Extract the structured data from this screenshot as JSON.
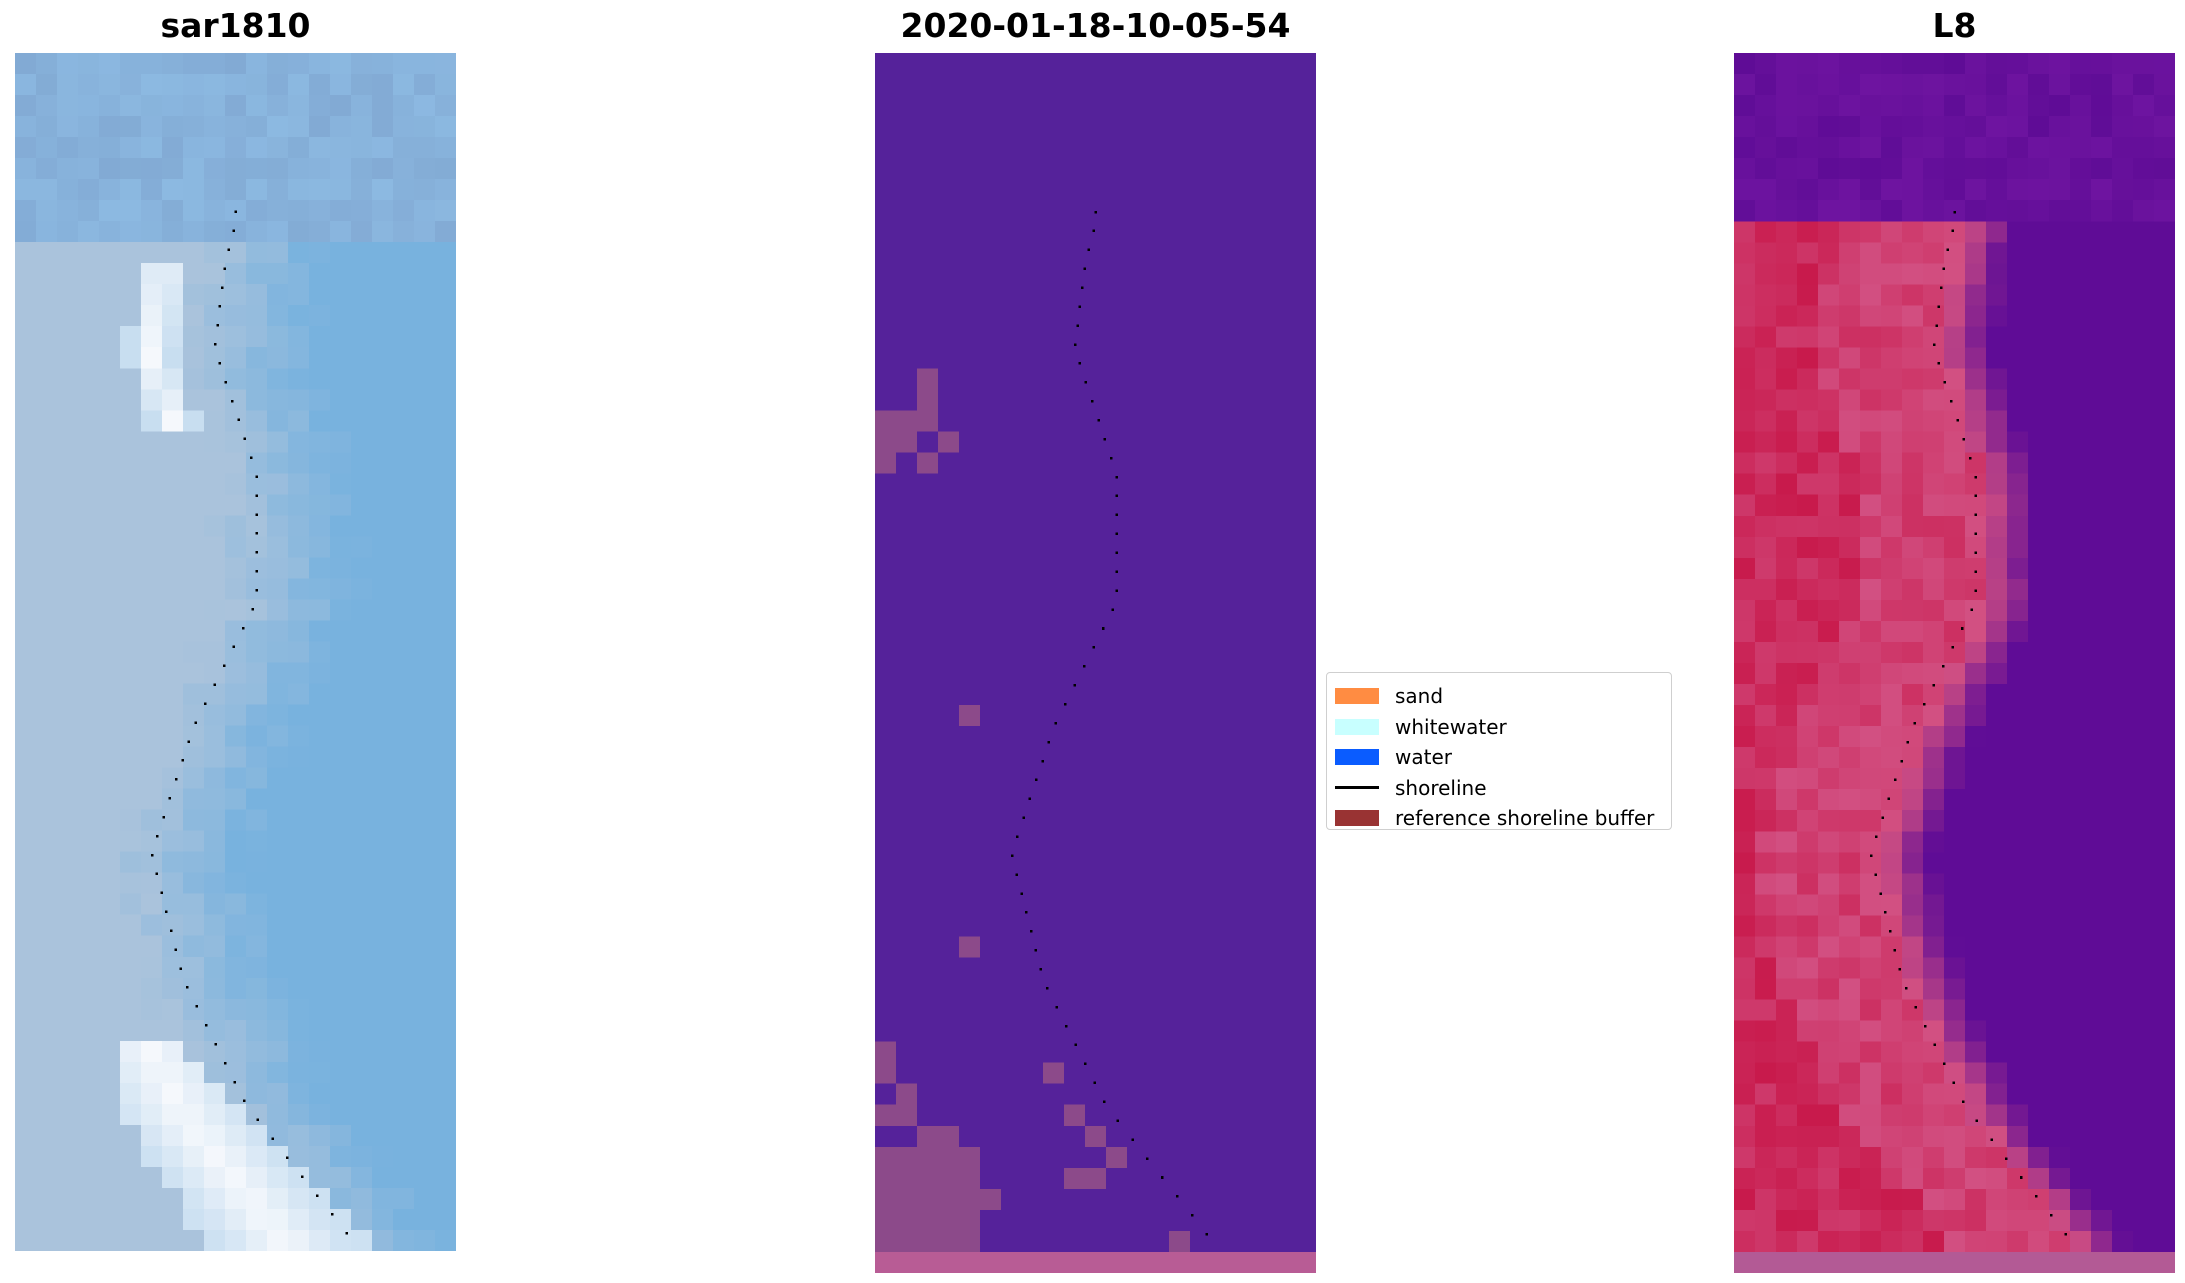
{
  "panels": [
    {
      "title": "sar1810",
      "kind": "rgb"
    },
    {
      "title": "2020-01-18-10-05-54",
      "kind": "classified"
    },
    {
      "title": "L8",
      "kind": "falsecolor"
    }
  ],
  "colors": {
    "sand": "#ff8c42",
    "whitewater": "#c8ffff",
    "water": "#0a5cff",
    "shoreline": "#000000",
    "reference_buffer": "#993333",
    "classified_background": "#55229a",
    "classified_patch": "#8c4a8a",
    "classified_band": "#b85c95"
  },
  "legend": {
    "items": [
      {
        "label": "sand",
        "type": "patch",
        "color": "#ff8c42"
      },
      {
        "label": "whitewater",
        "type": "patch",
        "color": "#c8ffff"
      },
      {
        "label": "water",
        "type": "patch",
        "color": "#0a5cff"
      },
      {
        "label": "shoreline",
        "type": "line",
        "color": "#000000"
      },
      {
        "label": "reference shoreline buffer",
        "type": "patch",
        "color": "#993333"
      }
    ]
  }
}
